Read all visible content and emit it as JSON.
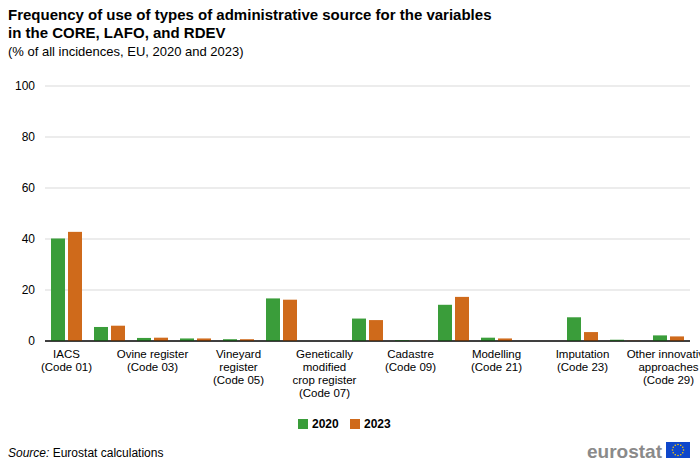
{
  "chart_data": {
    "type": "bar",
    "title": "Frequency of use of types of administrative source for the variables\nin the CORE, LAFO, and RDEV",
    "subtitle": "(% of all incidences, EU, 2020 and 2023)",
    "categories": [
      "IACS\n(Code 01)",
      null,
      "Ovine register\n(Code 03)",
      null,
      "Vineyard\nregister\n(Code 05)",
      null,
      "Genetically\nmodified\ncrop register\n(Code 07)",
      null,
      "Cadastre\n(Code 09)",
      null,
      "Modelling\n(Code 21)",
      null,
      "Imputation\n(Code 23)",
      null,
      "Other innovative\napproaches\n(Code 29)"
    ],
    "series": [
      {
        "name": "2020",
        "color": "#3a9d3a",
        "values": [
          40.2,
          5.5,
          1.2,
          1.0,
          0.7,
          16.7,
          0,
          8.8,
          0.3,
          14.2,
          1.3,
          0,
          9.3,
          0.5,
          2.2
        ]
      },
      {
        "name": "2023",
        "color": "#cf6a1b",
        "values": [
          42.8,
          6.0,
          1.3,
          1.0,
          0.7,
          16.2,
          0,
          8.2,
          0.1,
          17.3,
          1.0,
          0,
          3.5,
          0.1,
          1.8
        ]
      }
    ],
    "ylim": [
      0,
      100
    ],
    "yticks": [
      0,
      20,
      40,
      60,
      80,
      100
    ],
    "grid": true,
    "legend": "bottom",
    "source": "Source: Eurostat calculations",
    "logo": "eurostat"
  }
}
